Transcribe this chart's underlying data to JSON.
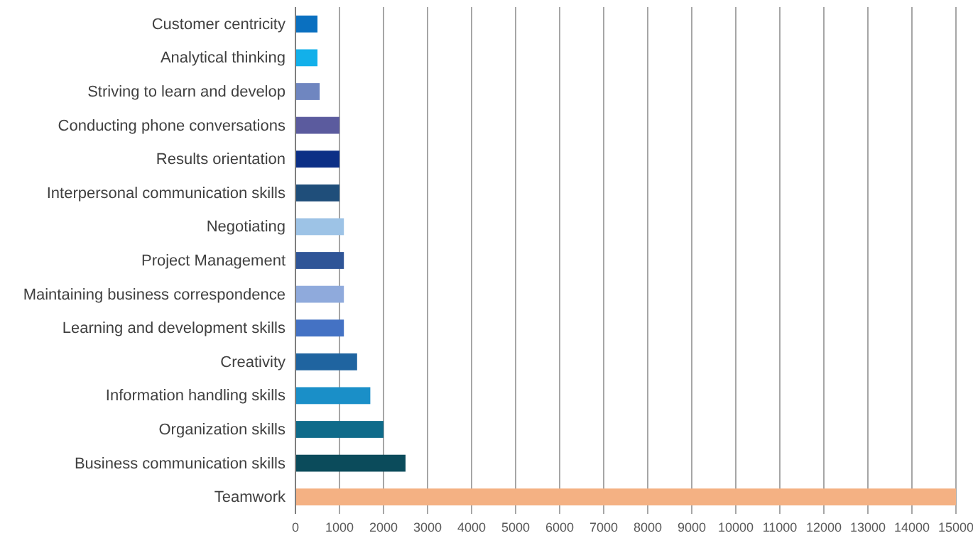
{
  "chart_data": {
    "type": "bar",
    "orientation": "horizontal",
    "categories": [
      "Customer centricity",
      "Analytical thinking",
      "Striving to learn and develop",
      "Conducting phone conversations",
      "Results orientation",
      "Interpersonal communication skills",
      "Negotiating",
      "Project Management",
      "Maintaining business correspondence",
      "Learning and development skills",
      "Creativity",
      "Information handling skills",
      "Organization skills",
      "Business communication skills",
      "Teamwork"
    ],
    "values": [
      500,
      500,
      550,
      1000,
      1000,
      1000,
      1100,
      1100,
      1100,
      1100,
      1400,
      1700,
      2000,
      2500,
      15000
    ],
    "colors": [
      "#0a70c0",
      "#12b0ea",
      "#6f86c0",
      "#5b5b9e",
      "#0c2f86",
      "#1f4e7a",
      "#9dc3e6",
      "#2f5597",
      "#8faadc",
      "#4472c4",
      "#1f64a0",
      "#1a8fc8",
      "#0f6b8a",
      "#0b4b5b",
      "#f4b183"
    ],
    "xlim": [
      0,
      15000
    ],
    "xticks": [
      0,
      1000,
      2000,
      3000,
      4000,
      5000,
      6000,
      7000,
      8000,
      9000,
      10000,
      11000,
      12000,
      13000,
      14000,
      15000
    ],
    "grid": "x"
  }
}
